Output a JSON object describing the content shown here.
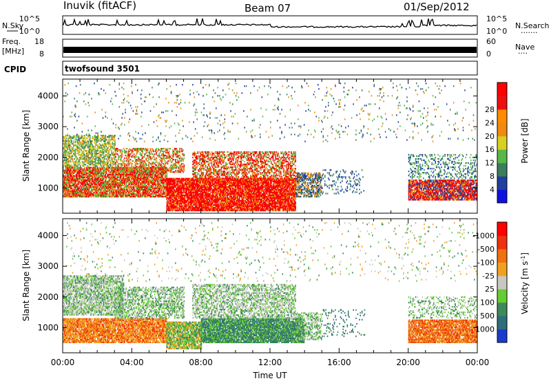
{
  "header": {
    "station": "Inuvik (fitACF)",
    "beam": "Beam 07",
    "date": "01/Sep/2012"
  },
  "strips": {
    "nsky_label": "N.Sky",
    "nsearch_label": "N.Search",
    "nsearch_dots": "·······",
    "noise_ticks": [
      "10^5",
      "10^0"
    ],
    "freq_label": "Freq.",
    "freq_unit": "[MHz]",
    "freq_ticks": [
      "18",
      "8"
    ],
    "nave_label": "Nave",
    "nave_dots": "····",
    "nave_ticks": [
      "60",
      "0"
    ],
    "cpid_label": "CPID",
    "cpid_value": "twofsound 3501"
  },
  "chart_data": [
    {
      "type": "heatmap",
      "name": "power",
      "ylabel": "Slant Range [km]",
      "xlabel": "",
      "y_ticks": [
        1000,
        2000,
        3000,
        4000
      ],
      "ylim": [
        180,
        4550
      ],
      "xlim": [
        0,
        24
      ],
      "colorbar": {
        "label": "Power [dB]",
        "ticks": [
          "4",
          "8",
          "12",
          "16",
          "20",
          "24",
          "28"
        ],
        "colors": [
          "#1010e0",
          "#2040a0",
          "#3c7e5c",
          "#58b848",
          "#d8d020",
          "#f08a10",
          "#ff8c00",
          "#ee1010",
          "#ff0000"
        ]
      }
    },
    {
      "type": "heatmap",
      "name": "velocity",
      "ylabel": "Slant Range [km]",
      "xlabel": "Time UT",
      "x_ticks": [
        "00:00",
        "04:00",
        "08:00",
        "12:00",
        "16:00",
        "20:00",
        "00:00"
      ],
      "y_ticks": [
        1000,
        2000,
        3000,
        4000
      ],
      "ylim": [
        180,
        4550
      ],
      "xlim": [
        0,
        24
      ],
      "colorbar": {
        "label": "Velocity [m s",
        "label_sup": "-1",
        "label_close": "]",
        "ticks": [
          "1000",
          "500",
          "100",
          "25",
          "-25",
          "-100",
          "-500",
          "-1000"
        ],
        "colors": [
          "#1a3ccc",
          "#2e6e7a",
          "#3c8a5a",
          "#66cc33",
          "#c8c8c0",
          "#f0a020",
          "#f07010",
          "#f03010",
          "#ff0000"
        ]
      }
    }
  ]
}
